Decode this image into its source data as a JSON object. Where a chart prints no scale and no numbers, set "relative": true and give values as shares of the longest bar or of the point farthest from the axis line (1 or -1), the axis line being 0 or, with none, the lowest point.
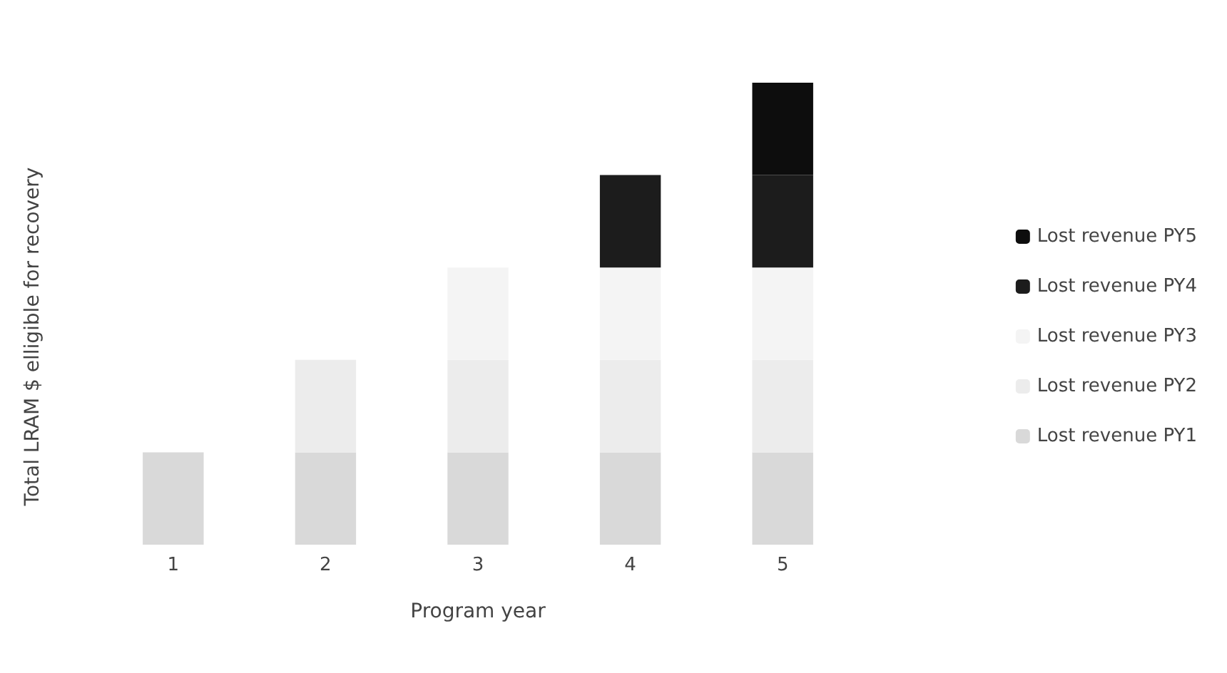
{
  "chart_data": {
    "type": "bar",
    "stacked": true,
    "relative": true,
    "xlabel": "Program year",
    "ylabel": "Total LRAM $ elligible for recovery",
    "categories": [
      "1",
      "2",
      "3",
      "4",
      "5"
    ],
    "series": [
      {
        "name": "Lost revenue PY1",
        "color": "#d9d9d9",
        "values": [
          0.2,
          0.2,
          0.2,
          0.2,
          0.2
        ]
      },
      {
        "name": "Lost revenue PY2",
        "color": "#ececec",
        "values": [
          null,
          0.2,
          0.2,
          0.2,
          0.2
        ]
      },
      {
        "name": "Lost revenue PY3",
        "color": "#f4f4f4",
        "values": [
          null,
          null,
          0.2,
          0.2,
          0.2
        ]
      },
      {
        "name": "Lost revenue PY4",
        "color": "#1c1c1c",
        "values": [
          null,
          null,
          null,
          0.2,
          0.2
        ]
      },
      {
        "name": "Lost revenue PY5",
        "color": "#0d0d0d",
        "values": [
          null,
          null,
          null,
          null,
          0.2
        ]
      }
    ],
    "legend": "right"
  }
}
